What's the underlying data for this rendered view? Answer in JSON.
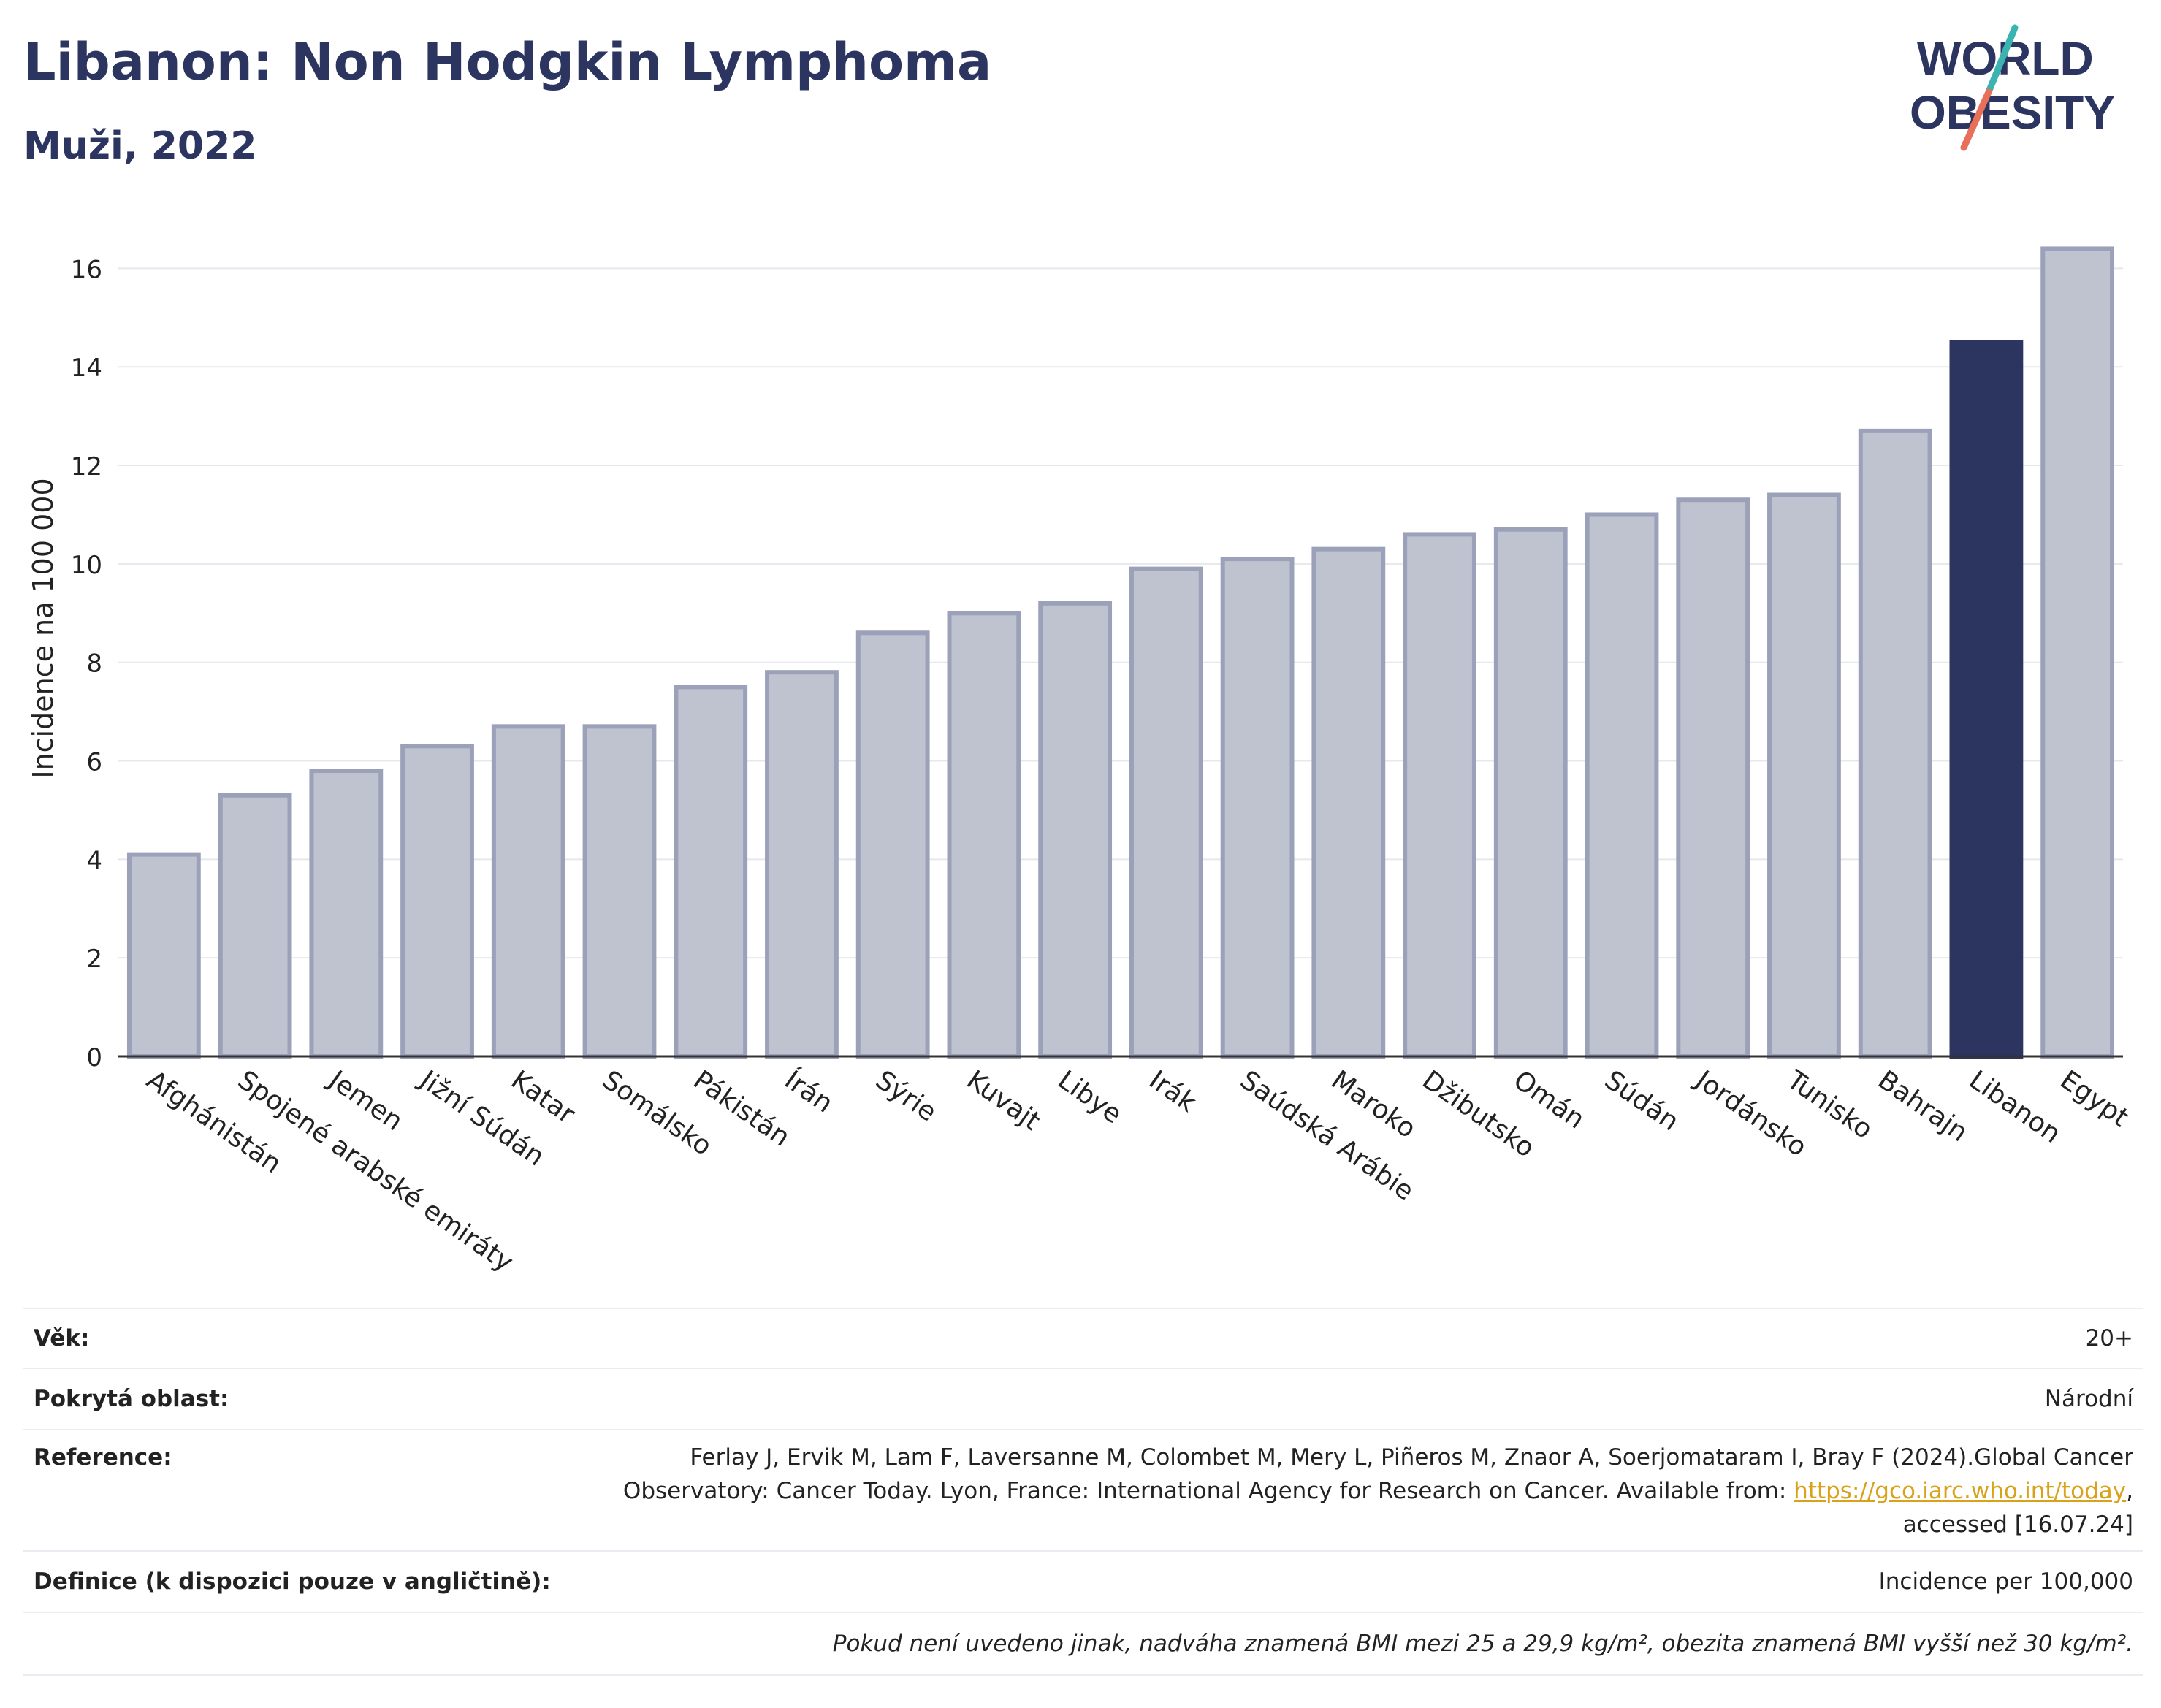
{
  "header": {
    "title": "Libanon: Non Hodgkin Lymphoma",
    "subtitle": "Muži, 2022",
    "logo_line1": "WORLD",
    "logo_line2": "OBESITY"
  },
  "chart_data": {
    "type": "bar",
    "title": "Libanon: Non Hodgkin Lymphoma",
    "subtitle": "Muži, 2022",
    "ylabel": "Incidence na 100 000",
    "xlabel": "",
    "ylim": [
      0,
      17
    ],
    "yticks": [
      0,
      2,
      4,
      6,
      8,
      10,
      12,
      14,
      16
    ],
    "grid": true,
    "categories": [
      "Afghánistán",
      "Spojené arabské emiráty",
      "Jemen",
      "Jižní Súdán",
      "Katar",
      "Somálsko",
      "Pákistán",
      "Írán",
      "Sýrie",
      "Kuvajt",
      "Libye",
      "Irák",
      "Saúdská Arábie",
      "Maroko",
      "Džibutsko",
      "Omán",
      "Súdán",
      "Jordánsko",
      "Tunisko",
      "Bahrajn",
      "Libanon",
      "Egypt"
    ],
    "values": [
      4.1,
      5.3,
      5.8,
      6.3,
      6.7,
      6.7,
      7.5,
      7.8,
      8.6,
      9.0,
      9.2,
      9.9,
      10.1,
      10.3,
      10.6,
      10.7,
      11.0,
      11.3,
      11.4,
      12.7,
      14.5,
      16.4
    ],
    "highlight": "Libanon",
    "colors": {
      "bar": "#bfc2cf",
      "bar_border": "#9ba1b8",
      "highlight": "#2c3560",
      "grid": "#e6e8ee",
      "axis": "#333333"
    }
  },
  "info": {
    "age_label": "Věk:",
    "age_value": "20+",
    "area_label": "Pokrytá oblast:",
    "area_value": "Národní",
    "ref_label": "Reference:",
    "ref_line1": "Ferlay J, Ervik M, Lam F, Laversanne M, Colombet M, Mery L, Piñeros M, Znaor A, Soerjomataram I, Bray F (2024).Global Cancer",
    "ref_line2": "Observatory: Cancer Today. Lyon, France: International Agency for Research on Cancer. Available from:",
    "ref_link": "https://gco.iarc.who.int/today",
    "ref_line2_end": ",",
    "ref_line3": "accessed [16.07.24]",
    "def_label": "Definice (k dispozici pouze v angličtině):",
    "def_value": "Incidence per 100,000",
    "note": "Pokud není uvedeno jinak, nadváha znamená BMI mezi 25 a 29,9 kg/m², obezita znamená BMI vyšší než 30 kg/m²."
  }
}
